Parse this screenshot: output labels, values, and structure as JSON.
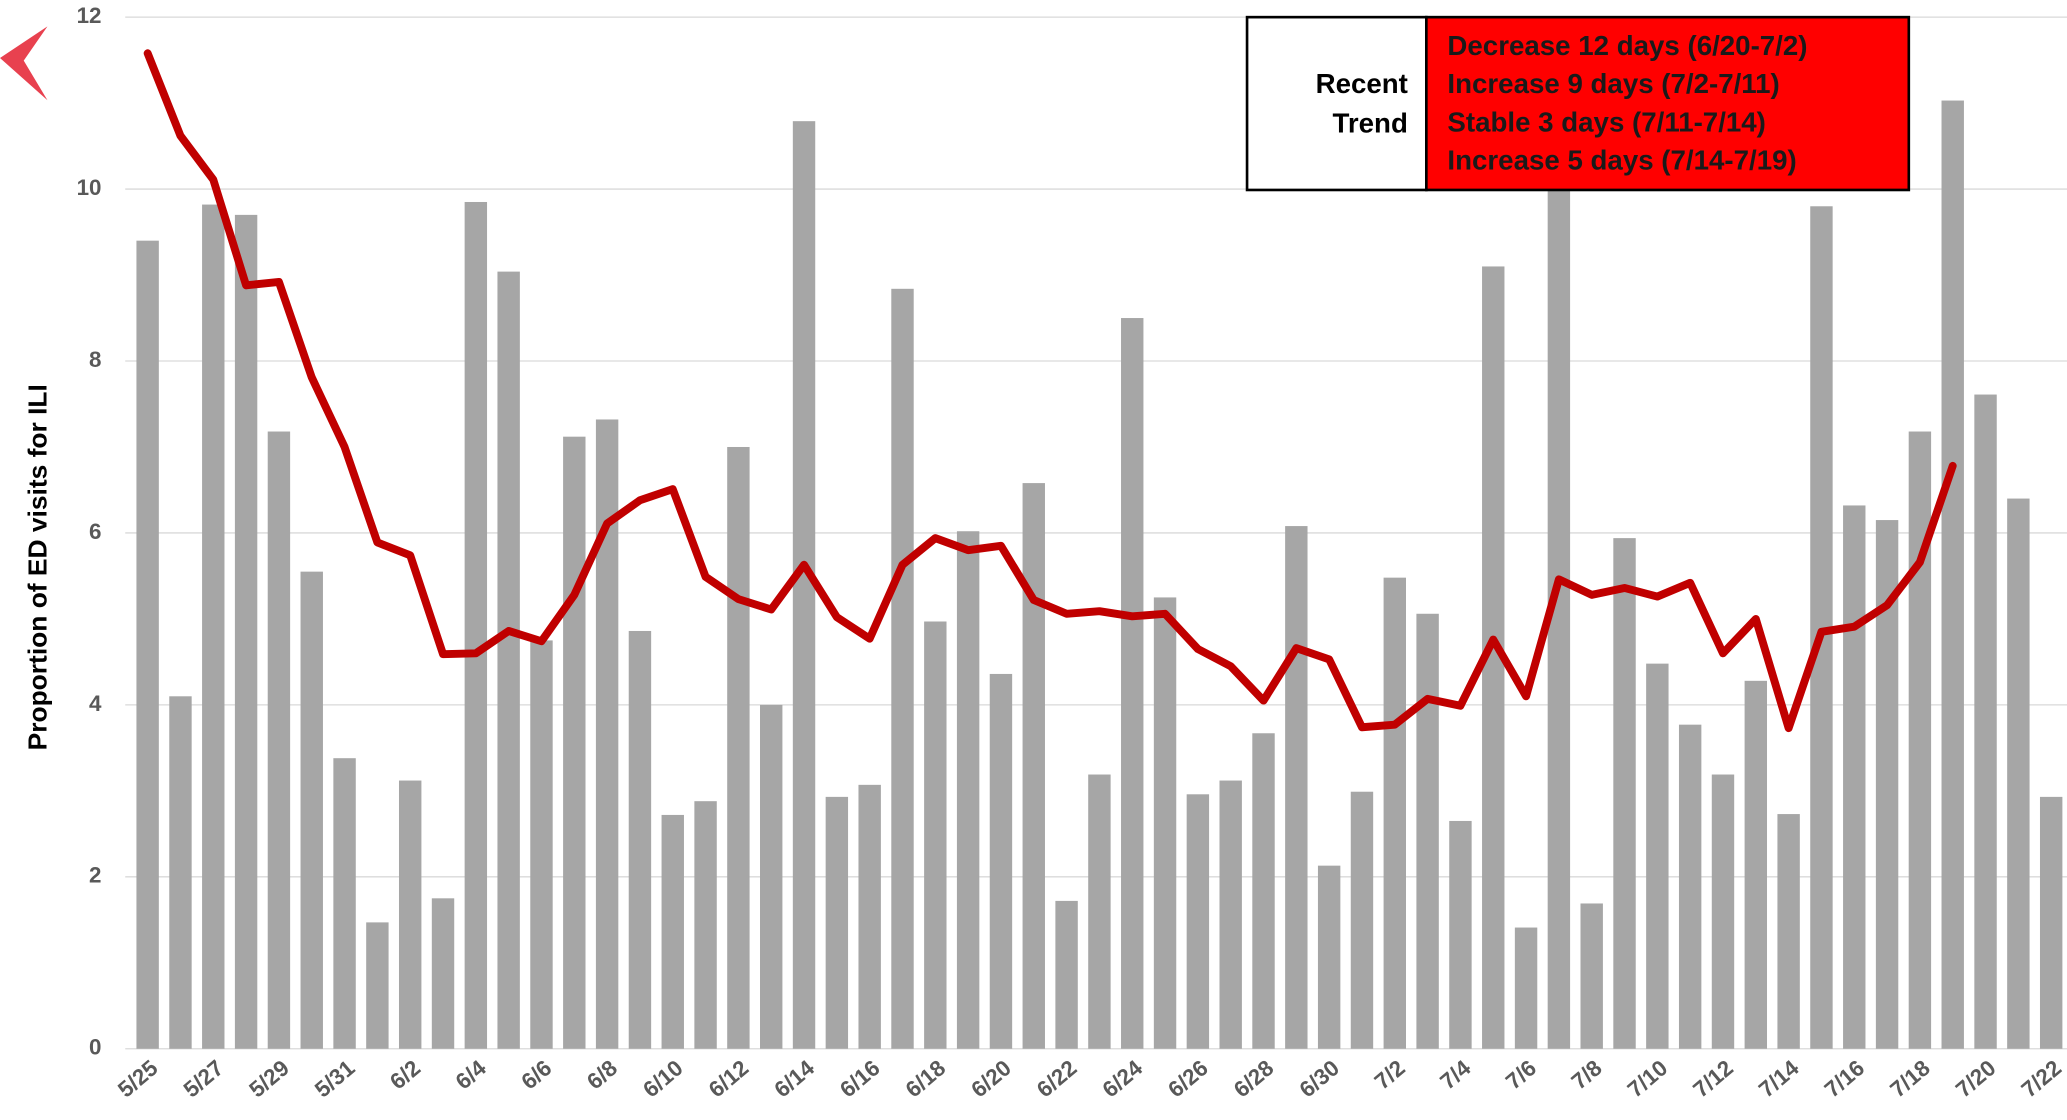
{
  "chart_data": {
    "type": "bar",
    "y_label": "Proportion of ED visits for ILI",
    "categories": [
      "5/25",
      null,
      "5/27",
      null,
      "5/29",
      null,
      "5/31",
      null,
      "6/2",
      null,
      "6/4",
      null,
      "6/6",
      null,
      "6/8",
      null,
      "6/10",
      null,
      "6/12",
      null,
      "6/14",
      null,
      "6/16",
      null,
      "6/18",
      null,
      "6/20",
      null,
      "6/22",
      null,
      "6/24",
      null,
      "6/26",
      null,
      "6/28",
      null,
      "6/30",
      null,
      "7/2",
      null,
      "7/4",
      null,
      "7/6",
      null,
      "7/8",
      null,
      "7/10",
      null,
      "7/12",
      null,
      "7/14",
      null,
      "7/16",
      null,
      "7/18",
      null,
      "7/20",
      null,
      "7/22"
    ],
    "series": [
      {
        "type": "bar",
        "color": "#a6a6a6",
        "values": [
          9.4,
          4.1,
          9.82,
          9.7,
          7.18,
          5.55,
          3.38,
          1.47,
          3.12,
          1.75,
          9.85,
          9.04,
          4.75,
          7.12,
          7.32,
          4.86,
          2.72,
          2.88,
          7.0,
          4.0,
          10.79,
          2.93,
          3.07,
          8.84,
          4.97,
          6.02,
          4.36,
          6.58,
          1.72,
          3.19,
          8.5,
          5.25,
          2.96,
          3.12,
          3.67,
          6.08,
          2.13,
          2.99,
          5.48,
          5.06,
          2.65,
          9.1,
          1.41,
          10.2,
          1.69,
          5.94,
          4.48,
          3.77,
          3.19,
          4.28,
          2.73,
          9.8,
          6.32,
          6.15,
          7.18,
          11.03,
          7.61,
          6.4,
          2.93
        ]
      },
      {
        "type": "line",
        "color": "#c00000",
        "values": [
          11.58,
          10.62,
          10.11,
          8.88,
          8.92,
          7.81,
          7.0,
          5.89,
          5.74,
          4.59,
          4.6,
          4.86,
          4.74,
          5.28,
          6.11,
          6.38,
          6.51,
          5.49,
          5.23,
          5.11,
          5.63,
          5.02,
          4.77,
          5.63,
          5.94,
          5.8,
          5.85,
          5.22,
          5.06,
          5.09,
          5.03,
          5.06,
          4.65,
          4.45,
          4.05,
          4.66,
          4.53,
          3.74,
          3.77,
          4.07,
          3.99,
          4.76,
          4.1,
          5.46,
          5.28,
          5.36,
          5.26,
          5.42,
          4.6,
          5.0,
          3.73,
          4.85,
          4.91,
          5.16,
          5.66,
          6.78,
          null,
          null,
          null
        ]
      }
    ],
    "ylim": [
      0,
      12
    ],
    "yticks": [
      0,
      2,
      4,
      6,
      8,
      10,
      12
    ],
    "grid": true,
    "trend_box": {
      "label_lines": [
        "Recent",
        "Trend"
      ],
      "color": "#ff0000",
      "lines": [
        "Decrease 12 days (6/20-7/2)",
        "Increase 9 days (7/2-7/11)",
        "Stable 3 days (7/11-7/14)",
        "Increase 5 days (7/14-7/19)"
      ]
    }
  }
}
